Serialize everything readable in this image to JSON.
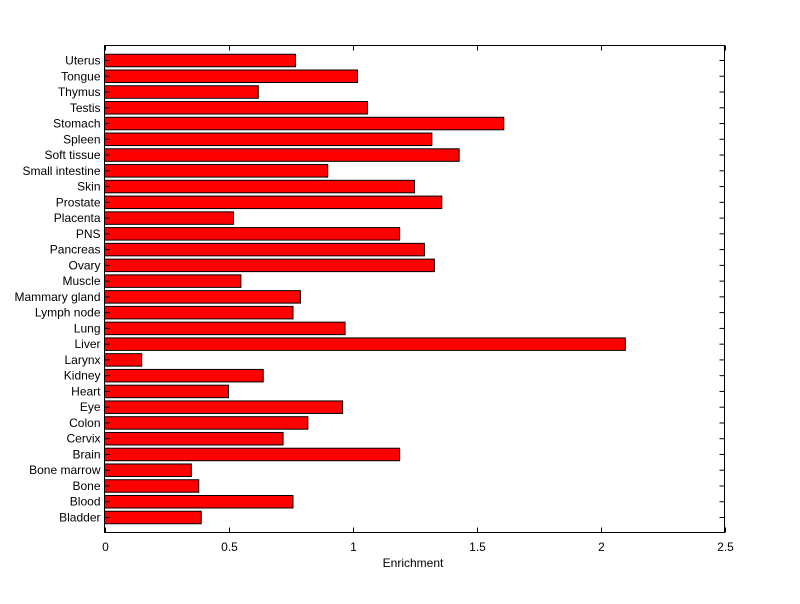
{
  "chart_data": {
    "type": "bar",
    "orientation": "horizontal",
    "title": "",
    "xlabel": "Enrichment",
    "ylabel": "",
    "xlim": [
      0,
      2.5
    ],
    "xticks": [
      "0",
      "0.5",
      "1",
      "1.5",
      "2",
      "2.5"
    ],
    "grid": false,
    "bar_color": "#ff0000",
    "categories": [
      "Uterus",
      "Tongue",
      "Thymus",
      "Testis",
      "Stomach",
      "Spleen",
      "Soft tissue",
      "Small intestine",
      "Skin",
      "Prostate",
      "Placenta",
      "PNS",
      "Pancreas",
      "Ovary",
      "Muscle",
      "Mammary gland",
      "Lymph node",
      "Lung",
      "Liver",
      "Larynx",
      "Kidney",
      "Heart",
      "Eye",
      "Colon",
      "Cervix",
      "Brain",
      "Bone marrow",
      "Bone",
      "Blood",
      "Bladder"
    ],
    "values": [
      0.77,
      1.02,
      0.62,
      1.06,
      1.61,
      1.32,
      1.43,
      0.9,
      1.25,
      1.36,
      0.52,
      1.19,
      1.29,
      1.33,
      0.55,
      0.79,
      0.76,
      0.97,
      2.1,
      0.15,
      0.64,
      0.5,
      0.96,
      0.82,
      0.72,
      1.19,
      0.35,
      0.38,
      0.76,
      0.39
    ]
  }
}
